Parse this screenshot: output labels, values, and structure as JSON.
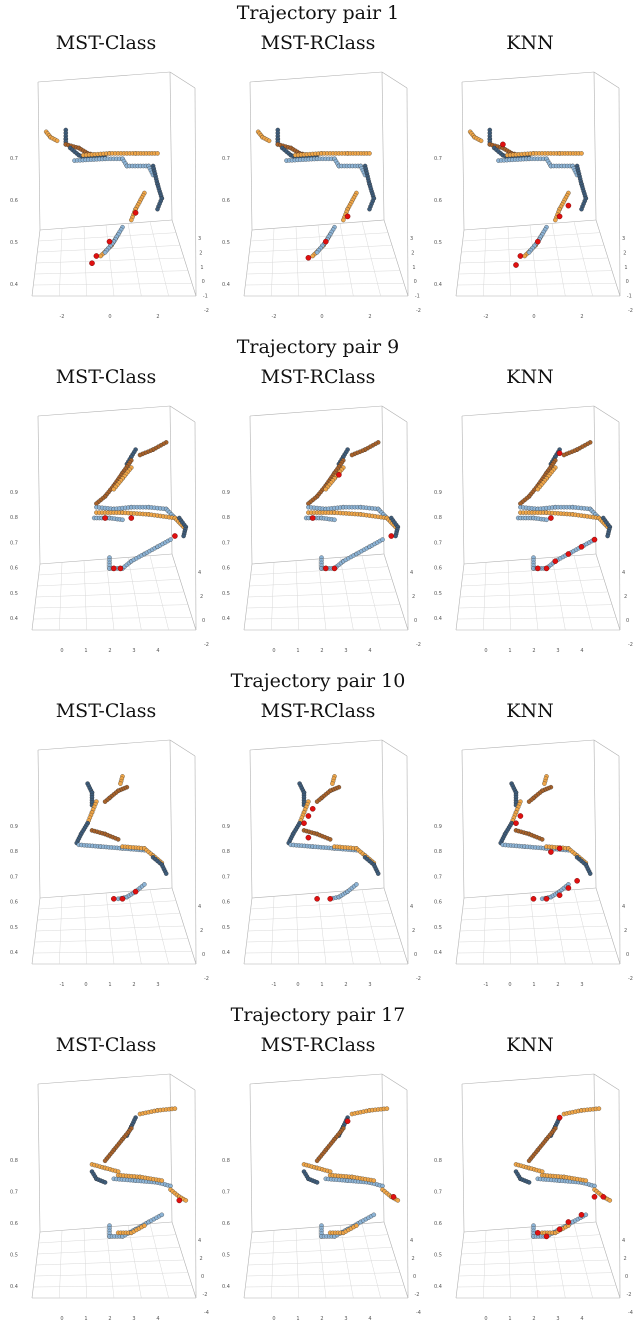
{
  "colors": {
    "light_blue": "#8db4d6",
    "dark_blue": "#3e5c7a",
    "light_orange": "#f0a648",
    "dark_orange": "#a8622a",
    "red": "#e01010",
    "box": "#b0b0b0",
    "grid": "#d8d8d8"
  },
  "columns": [
    "MST-Class",
    "MST-RClass",
    "KNN"
  ],
  "chart_data": [
    {
      "type": "scatter",
      "title": "Trajectory pair 1",
      "methods": [
        "MST-Class",
        "MST-RClass",
        "KNN"
      ],
      "z_ticks": [
        "0.7",
        "0.6",
        "0.5",
        "0.4"
      ],
      "x_ticks": [
        "-2",
        "0",
        "2"
      ],
      "y_ticks": [
        "3",
        "2",
        "1",
        "0",
        "-1",
        "-2"
      ],
      "trajectories": [
        {
          "color": "light_orange",
          "points": [
            [
              -2.5,
              0.79
            ],
            [
              -2.3,
              0.76
            ],
            [
              -2.0,
              0.74
            ]
          ]
        },
        {
          "color": "dark_blue",
          "points": [
            [
              -1.6,
              0.8
            ],
            [
              -1.6,
              0.75
            ],
            [
              -1.6,
              0.72
            ]
          ]
        },
        {
          "color": "dark_orange",
          "points": [
            [
              -1.6,
              0.72
            ],
            [
              -1.0,
              0.7
            ],
            [
              -0.6,
              0.67
            ],
            [
              -0.2,
              0.66
            ]
          ]
        },
        {
          "color": "dark_blue",
          "points": [
            [
              -1.4,
              0.7
            ],
            [
              -1.0,
              0.66
            ],
            [
              -0.6,
              0.64
            ],
            [
              0.2,
              0.66
            ]
          ]
        },
        {
          "color": "light_orange",
          "points": [
            [
              -0.8,
              0.66
            ],
            [
              0.4,
              0.67
            ],
            [
              1.6,
              0.67
            ],
            [
              2.6,
              0.67
            ]
          ]
        },
        {
          "color": "light_blue",
          "points": [
            [
              -1.2,
              0.63
            ],
            [
              0.2,
              0.64
            ],
            [
              1.0,
              0.64
            ],
            [
              1.2,
              0.6
            ],
            [
              2.2,
              0.6
            ],
            [
              2.4,
              0.55
            ]
          ]
        },
        {
          "color": "dark_blue",
          "points": [
            [
              2.4,
              0.6
            ],
            [
              2.6,
              0.5
            ],
            [
              2.8,
              0.42
            ],
            [
              2.6,
              0.36
            ]
          ]
        },
        {
          "color": "light_orange",
          "points": [
            [
              2.0,
              0.45
            ],
            [
              1.6,
              0.36
            ],
            [
              1.4,
              0.3
            ]
          ]
        },
        {
          "color": "light_orange",
          "points": [
            [
              0.8,
              0.22
            ],
            [
              0.5,
              0.16
            ],
            [
              0.0,
              0.1
            ]
          ]
        },
        {
          "color": "light_blue",
          "points": [
            [
              1.0,
              0.26
            ],
            [
              0.6,
              0.18
            ],
            [
              0.2,
              0.12
            ]
          ]
        }
      ],
      "red_points": {
        "MST-Class": [
          [
            1.6,
            0.34
          ],
          [
            0.4,
            0.18
          ],
          [
            -0.2,
            0.1
          ],
          [
            -0.4,
            0.06
          ]
        ],
        "MST-RClass": [
          [
            1.6,
            0.32
          ],
          [
            0.6,
            0.18
          ],
          [
            -0.2,
            0.09
          ]
        ],
        "KNN": [
          [
            -1.0,
            0.72
          ],
          [
            2.0,
            0.38
          ],
          [
            1.6,
            0.32
          ],
          [
            0.6,
            0.18
          ],
          [
            -0.2,
            0.1
          ],
          [
            -0.4,
            0.05
          ]
        ]
      }
    },
    {
      "type": "scatter",
      "title": "Trajectory pair 9",
      "methods": [
        "MST-Class",
        "MST-RClass",
        "KNN"
      ],
      "z_ticks": [
        "0.9",
        "0.8",
        "0.7",
        "0.6",
        "0.5",
        "0.4"
      ],
      "x_ticks": [
        "0",
        "1",
        "2",
        "3",
        "4"
      ],
      "y_ticks": [
        "4",
        "2",
        "0",
        "-2"
      ],
      "trajectories": [
        {
          "color": "dark_orange",
          "points": [
            [
              3.0,
              0.92
            ],
            [
              2.4,
              0.88
            ],
            [
              1.8,
              0.85
            ]
          ]
        },
        {
          "color": "dark_blue",
          "points": [
            [
              1.6,
              0.88
            ],
            [
              1.4,
              0.84
            ],
            [
              1.2,
              0.8
            ]
          ]
        },
        {
          "color": "dark_orange",
          "points": [
            [
              1.4,
              0.82
            ],
            [
              1.0,
              0.75
            ],
            [
              0.6,
              0.68
            ],
            [
              0.2,
              0.62
            ],
            [
              -0.2,
              0.58
            ]
          ]
        },
        {
          "color": "light_orange",
          "points": [
            [
              1.4,
              0.78
            ],
            [
              1.0,
              0.72
            ],
            [
              0.6,
              0.66
            ]
          ]
        },
        {
          "color": "light_blue",
          "points": [
            [
              -0.2,
              0.56
            ],
            [
              0.6,
              0.55
            ],
            [
              1.4,
              0.56
            ],
            [
              2.2,
              0.56
            ],
            [
              3.0,
              0.55
            ],
            [
              3.4,
              0.5
            ]
          ]
        },
        {
          "color": "light_orange",
          "points": [
            [
              -0.2,
              0.53
            ],
            [
              1.0,
              0.53
            ],
            [
              2.2,
              0.52
            ],
            [
              3.4,
              0.5
            ],
            [
              3.8,
              0.45
            ]
          ]
        },
        {
          "color": "dark_blue",
          "points": [
            [
              3.6,
              0.5
            ],
            [
              3.9,
              0.45
            ],
            [
              3.8,
              0.4
            ]
          ]
        },
        {
          "color": "light_blue",
          "points": [
            [
              -0.3,
              0.5
            ],
            [
              0.4,
              0.5
            ],
            [
              1.0,
              0.49
            ]
          ]
        },
        {
          "color": "light_blue",
          "points": [
            [
              0.4,
              0.28
            ],
            [
              0.4,
              0.22
            ],
            [
              1.0,
              0.22
            ],
            [
              1.4,
              0.26
            ],
            [
              2.0,
              0.3
            ],
            [
              2.6,
              0.34
            ],
            [
              3.2,
              0.38
            ]
          ]
        }
      ],
      "red_points": {
        "MST-Class": [
          [
            0.6,
            0.22
          ],
          [
            0.9,
            0.22
          ],
          [
            3.4,
            0.4
          ],
          [
            0.2,
            0.5
          ],
          [
            1.4,
            0.5
          ]
        ],
        "MST-RClass": [
          [
            1.0,
            0.22
          ],
          [
            0.6,
            0.22
          ],
          [
            1.2,
            0.74
          ],
          [
            3.6,
            0.4
          ],
          [
            0.0,
            0.5
          ]
        ],
        "KNN": [
          [
            0.6,
            0.22
          ],
          [
            1.0,
            0.22
          ],
          [
            1.4,
            0.26
          ],
          [
            2.0,
            0.3
          ],
          [
            2.6,
            0.34
          ],
          [
            3.2,
            0.38
          ],
          [
            1.6,
            0.86
          ],
          [
            1.2,
            0.5
          ]
        ]
      }
    },
    {
      "type": "scatter",
      "title": "Trajectory pair 10",
      "methods": [
        "MST-Class",
        "MST-RClass",
        "KNN"
      ],
      "z_ticks": [
        "0.9",
        "0.8",
        "0.7",
        "0.6",
        "0.5",
        "0.4"
      ],
      "x_ticks": [
        "-1",
        "0",
        "1",
        "2",
        "3"
      ],
      "y_ticks": [
        "4",
        "2",
        "0",
        "-2"
      ],
      "trajectories": [
        {
          "color": "dark_orange",
          "points": [
            [
              1.2,
              0.86
            ],
            [
              0.8,
              0.84
            ],
            [
              0.4,
              0.8
            ],
            [
              0.2,
              0.78
            ]
          ]
        },
        {
          "color": "light_orange",
          "points": [
            [
              1.0,
              0.92
            ],
            [
              0.9,
              0.88
            ]
          ]
        },
        {
          "color": "dark_blue",
          "points": [
            [
              -0.6,
              0.88
            ],
            [
              -0.4,
              0.83
            ],
            [
              -0.4,
              0.76
            ]
          ]
        },
        {
          "color": "light_orange",
          "points": [
            [
              -0.2,
              0.78
            ],
            [
              -0.4,
              0.72
            ],
            [
              -0.6,
              0.66
            ]
          ]
        },
        {
          "color": "dark_blue",
          "points": [
            [
              -0.6,
              0.66
            ],
            [
              -0.9,
              0.6
            ],
            [
              -1.1,
              0.55
            ]
          ]
        },
        {
          "color": "dark_orange",
          "points": [
            [
              -0.4,
              0.62
            ],
            [
              0.2,
              0.6
            ],
            [
              0.8,
              0.57
            ]
          ]
        },
        {
          "color": "light_blue",
          "points": [
            [
              -1.0,
              0.54
            ],
            [
              0.0,
              0.53
            ],
            [
              1.0,
              0.52
            ],
            [
              2.0,
              0.51
            ]
          ]
        },
        {
          "color": "light_orange",
          "points": [
            [
              1.0,
              0.53
            ],
            [
              2.0,
              0.52
            ],
            [
              2.4,
              0.48
            ],
            [
              2.8,
              0.44
            ]
          ]
        },
        {
          "color": "dark_blue",
          "points": [
            [
              2.4,
              0.47
            ],
            [
              2.8,
              0.43
            ],
            [
              3.0,
              0.38
            ]
          ]
        },
        {
          "color": "light_blue",
          "points": [
            [
              0.8,
              0.24
            ],
            [
              1.2,
              0.25
            ],
            [
              1.6,
              0.28
            ],
            [
              2.0,
              0.32
            ]
          ]
        }
      ],
      "red_points": {
        "MST-Class": [
          [
            0.6,
            0.24
          ],
          [
            1.0,
            0.24
          ],
          [
            1.6,
            0.28
          ]
        ],
        "MST-RClass": [
          [
            0.2,
            0.24
          ],
          [
            0.8,
            0.24
          ],
          [
            -0.2,
            0.7
          ],
          [
            0.0,
            0.74
          ],
          [
            -0.4,
            0.66
          ],
          [
            -0.2,
            0.58
          ]
        ],
        "KNN": [
          [
            0.4,
            0.24
          ],
          [
            1.0,
            0.24
          ],
          [
            1.6,
            0.26
          ],
          [
            2.0,
            0.3
          ],
          [
            2.4,
            0.34
          ],
          [
            -0.2,
            0.7
          ],
          [
            -0.4,
            0.66
          ],
          [
            1.2,
            0.5
          ],
          [
            1.6,
            0.52
          ]
        ]
      }
    },
    {
      "type": "scatter",
      "title": "Trajectory pair 17",
      "methods": [
        "MST-Class",
        "MST-RClass",
        "KNN"
      ],
      "z_ticks": [
        "0.8",
        "0.7",
        "0.6",
        "0.5",
        "0.4"
      ],
      "x_ticks": [
        "0",
        "1",
        "2",
        "3",
        "4"
      ],
      "y_ticks": [
        "4",
        "2",
        "0",
        "-2",
        "-4"
      ],
      "trajectories": [
        {
          "color": "light_orange",
          "points": [
            [
              1.8,
              0.9
            ],
            [
              2.6,
              0.92
            ],
            [
              3.4,
              0.93
            ]
          ]
        },
        {
          "color": "dark_blue",
          "points": [
            [
              1.6,
              0.88
            ],
            [
              1.4,
              0.83
            ],
            [
              1.2,
              0.78
            ]
          ]
        },
        {
          "color": "dark_orange",
          "points": [
            [
              1.4,
              0.82
            ],
            [
              1.0,
              0.76
            ],
            [
              0.6,
              0.7
            ],
            [
              0.2,
              0.64
            ]
          ]
        },
        {
          "color": "light_orange",
          "points": [
            [
              -0.4,
              0.62
            ],
            [
              0.2,
              0.6
            ],
            [
              0.8,
              0.58
            ]
          ]
        },
        {
          "color": "dark_blue",
          "points": [
            [
              -0.4,
              0.58
            ],
            [
              -0.2,
              0.54
            ],
            [
              0.2,
              0.52
            ]
          ]
        },
        {
          "color": "light_blue",
          "points": [
            [
              0.6,
              0.54
            ],
            [
              1.6,
              0.53
            ],
            [
              2.6,
              0.52
            ],
            [
              3.2,
              0.5
            ]
          ]
        },
        {
          "color": "light_orange",
          "points": [
            [
              0.8,
              0.56
            ],
            [
              1.8,
              0.55
            ],
            [
              2.8,
              0.53
            ]
          ]
        },
        {
          "color": "light_orange",
          "points": [
            [
              3.2,
              0.48
            ],
            [
              3.6,
              0.44
            ],
            [
              3.9,
              0.42
            ]
          ]
        },
        {
          "color": "light_blue",
          "points": [
            [
              0.4,
              0.28
            ],
            [
              0.4,
              0.22
            ],
            [
              1.0,
              0.22
            ],
            [
              1.6,
              0.26
            ],
            [
              2.2,
              0.3
            ],
            [
              2.8,
              0.34
            ]
          ]
        },
        {
          "color": "light_orange",
          "points": [
            [
              0.8,
              0.24
            ],
            [
              1.4,
              0.24
            ],
            [
              2.0,
              0.28
            ]
          ]
        }
      ],
      "red_points": {
        "MST-Class": [
          [
            3.6,
            0.42
          ]
        ],
        "MST-RClass": [
          [
            1.6,
            0.86
          ],
          [
            3.7,
            0.44
          ]
        ],
        "KNN": [
          [
            1.6,
            0.88
          ],
          [
            3.2,
            0.44
          ],
          [
            3.6,
            0.44
          ],
          [
            2.6,
            0.34
          ],
          [
            2.0,
            0.3
          ],
          [
            1.6,
            0.26
          ],
          [
            1.0,
            0.22
          ],
          [
            0.6,
            0.24
          ]
        ]
      }
    }
  ]
}
